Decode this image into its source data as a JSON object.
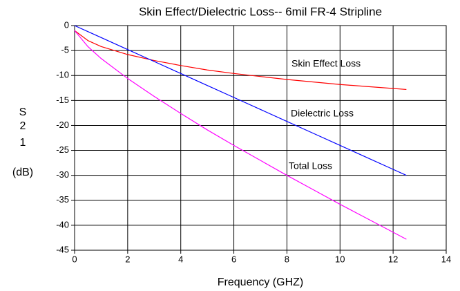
{
  "chart_data": {
    "type": "line",
    "title": "Skin Effect/Dielectric Loss-- 6mil FR-4 Stripline",
    "x_label": "Frequency (GHZ)",
    "y_label_lines": [
      "S",
      "2",
      "1",
      "(dB)"
    ],
    "x": [
      0,
      0.5,
      1,
      2,
      3,
      4,
      5,
      6,
      7,
      8,
      9,
      10,
      11,
      12,
      12.5
    ],
    "series": [
      {
        "name": "Skin Effect Loss",
        "color": "#ff0000",
        "values": [
          -1,
          -3,
          -4.2,
          -5.8,
          -7,
          -8,
          -8.9,
          -9.6,
          -10.2,
          -10.8,
          -11.3,
          -11.8,
          -12.2,
          -12.6,
          -12.8
        ]
      },
      {
        "name": "Dielectric Loss",
        "color": "#0000ff",
        "values": [
          0,
          -1.2,
          -2.4,
          -4.8,
          -7.2,
          -9.6,
          -12,
          -14.4,
          -16.8,
          -19.2,
          -21.6,
          -24,
          -26.4,
          -28.8,
          -30
        ]
      },
      {
        "name": "Total Loss",
        "color": "#ff00ff",
        "values": [
          -1,
          -4.2,
          -6.6,
          -10.6,
          -14.2,
          -17.6,
          -20.9,
          -24,
          -27,
          -30,
          -32.9,
          -35.8,
          -38.6,
          -41.4,
          -42.8
        ]
      }
    ],
    "xlim": [
      0,
      14
    ],
    "xticks": [
      0,
      2,
      4,
      6,
      8,
      10,
      12,
      14
    ],
    "ylim": [
      -45,
      0
    ],
    "yticks": [
      0,
      -5,
      -10,
      -15,
      -20,
      -25,
      -30,
      -35,
      -40,
      -45
    ],
    "grid": true
  }
}
